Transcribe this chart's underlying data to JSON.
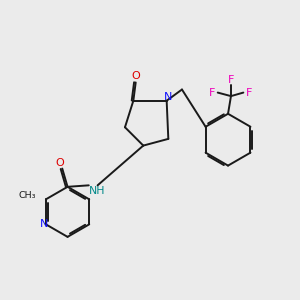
{
  "background_color": "#ebebeb",
  "bond_color": "#1a1a1a",
  "N_color": "#1010ff",
  "O_color": "#dd0000",
  "F_color": "#ee00bb",
  "NH_color": "#008888",
  "figsize": [
    3.0,
    3.0
  ],
  "dpi": 100,
  "xlim": [
    0,
    10
  ],
  "ylim": [
    0,
    10
  ]
}
